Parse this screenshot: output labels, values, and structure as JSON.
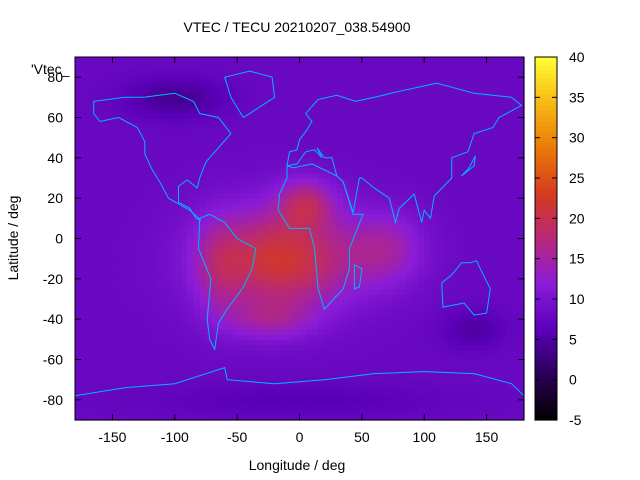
{
  "chart_data": {
    "type": "heatmap",
    "title": "VTEC / TECU 20210207_038.54900",
    "xlabel": "Longitude / deg",
    "ylabel": "Latitude / deg",
    "xlim": [
      -180,
      180
    ],
    "ylim": [
      -90,
      90
    ],
    "xticks": [
      -150,
      -100,
      -50,
      0,
      50,
      100,
      150
    ],
    "yticks": [
      -80,
      -60,
      -40,
      -20,
      0,
      20,
      40,
      60,
      80
    ],
    "colorbar": {
      "range": [
        -5,
        40
      ],
      "ticks": [
        -5,
        0,
        5,
        10,
        15,
        20,
        25,
        30,
        35,
        40
      ],
      "stops": [
        "#000000",
        "#2a0056",
        "#5a00b8",
        "#8a1cd8",
        "#b7287a",
        "#d63a1e",
        "#ea7a08",
        "#f7b814",
        "#ffff33"
      ]
    },
    "legend": "'Vtec_",
    "grid": false,
    "background_tecu": 8,
    "features": [
      {
        "name": "main-anomaly",
        "lon": -15,
        "lat": -10,
        "sigma_lon": 60,
        "sigma_lat": 25,
        "amplitude": 14
      },
      {
        "name": "north-africa-peak",
        "lon": 5,
        "lat": 18,
        "sigma_lon": 22,
        "sigma_lat": 12,
        "amplitude": 8
      },
      {
        "name": "south-atlantic-lobe",
        "lon": -25,
        "lat": -40,
        "sigma_lon": 35,
        "sigma_lat": 10,
        "amplitude": 5
      },
      {
        "name": "indian-ocean-extension",
        "lon": 70,
        "lat": -5,
        "sigma_lon": 30,
        "sigma_lat": 18,
        "amplitude": 6
      },
      {
        "name": "south-america-band",
        "lon": -65,
        "lat": -15,
        "sigma_lon": 18,
        "sigma_lat": 25,
        "amplitude": 4
      },
      {
        "name": "arctic-low",
        "lon": -100,
        "lat": 70,
        "sigma_lon": 40,
        "sigma_lat": 10,
        "amplitude": -4
      },
      {
        "name": "australia-low",
        "lon": 140,
        "lat": -45,
        "sigma_lon": 25,
        "sigma_lat": 10,
        "amplitude": -3
      },
      {
        "name": "antarctic-low",
        "lon": 0,
        "lat": -80,
        "sigma_lon": 120,
        "sigma_lat": 8,
        "amplitude": -2
      }
    ]
  }
}
